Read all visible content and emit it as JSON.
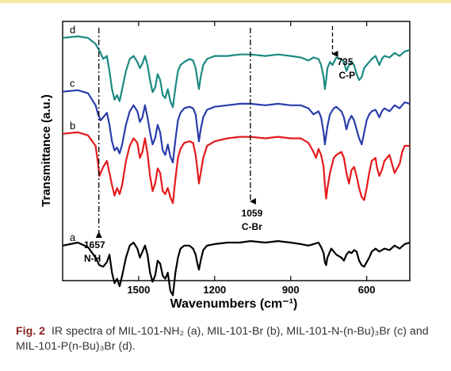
{
  "chart_data": {
    "type": "line",
    "xlabel": "Wavenumbers (cm⁻¹)",
    "ylabel": "Transmittance (a.u.)",
    "xlim": [
      1800,
      430
    ],
    "x_reversed": true,
    "x_ticks": [
      1500,
      1200,
      900,
      600
    ],
    "y_tick_labels": false,
    "grid": false,
    "series": [
      {
        "name": "a",
        "color": "#000000",
        "x": [
          1800,
          1740,
          1700,
          1670,
          1655,
          1640,
          1625,
          1615,
          1605,
          1595,
          1585,
          1575,
          1565,
          1550,
          1535,
          1520,
          1505,
          1495,
          1485,
          1475,
          1465,
          1455,
          1445,
          1435,
          1425,
          1415,
          1405,
          1395,
          1385,
          1375,
          1365,
          1355,
          1345,
          1335,
          1320,
          1300,
          1285,
          1275,
          1268,
          1262,
          1255,
          1245,
          1230,
          1200,
          1150,
          1100,
          1059,
          1000,
          950,
          900,
          860,
          830,
          810,
          790,
          780,
          770,
          765,
          760,
          755,
          740,
          720,
          700,
          690,
          680,
          670,
          660,
          650,
          640,
          630,
          620,
          610,
          600,
          590,
          580,
          565,
          550,
          530,
          510,
          490,
          470,
          450,
          430
        ],
        "y": [
          52,
          50,
          53,
          60,
          65,
          66,
          63,
          58,
          70,
          77,
          74,
          79,
          72,
          60,
          52,
          50,
          54,
          60,
          56,
          52,
          58,
          70,
          76,
          72,
          62,
          64,
          72,
          74,
          70,
          82,
          85,
          70,
          60,
          54,
          52,
          52,
          54,
          58,
          64,
          68,
          62,
          55,
          52,
          51,
          50,
          50,
          49,
          50,
          49,
          50,
          51,
          52,
          51,
          50,
          53,
          57,
          63,
          65,
          60,
          54,
          58,
          60,
          62,
          58,
          56,
          57,
          55,
          56,
          62,
          65,
          66,
          63,
          60,
          56,
          54,
          56,
          54,
          55,
          52,
          54,
          51,
          50
        ]
      },
      {
        "name": "b",
        "color": "#e41a1c",
        "x": [
          1800,
          1740,
          1700,
          1670,
          1660,
          1655,
          1650,
          1640,
          1625,
          1615,
          1605,
          1595,
          1585,
          1575,
          1565,
          1550,
          1535,
          1520,
          1505,
          1495,
          1485,
          1475,
          1465,
          1455,
          1445,
          1435,
          1425,
          1415,
          1405,
          1395,
          1385,
          1375,
          1365,
          1355,
          1345,
          1335,
          1320,
          1300,
          1285,
          1275,
          1268,
          1262,
          1255,
          1245,
          1230,
          1200,
          1150,
          1100,
          1059,
          1000,
          950,
          900,
          860,
          830,
          810,
          800,
          790,
          780,
          770,
          765,
          760,
          755,
          745,
          730,
          720,
          700,
          690,
          680,
          670,
          660,
          650,
          640,
          630,
          620,
          610,
          600,
          590,
          580,
          565,
          560,
          550,
          540,
          530,
          510,
          490,
          470,
          460,
          450,
          430
        ],
        "y": [
          22,
          21,
          23,
          30,
          42,
          50,
          48,
          44,
          40,
          48,
          56,
          63,
          58,
          62,
          56,
          40,
          30,
          25,
          28,
          38,
          34,
          25,
          35,
          50,
          60,
          55,
          45,
          48,
          60,
          62,
          58,
          64,
          68,
          52,
          38,
          32,
          28,
          27,
          28,
          36,
          46,
          55,
          48,
          38,
          30,
          27,
          25,
          24,
          24,
          25,
          24,
          25,
          25,
          28,
          34,
          38,
          32,
          36,
          44,
          56,
          65,
          58,
          48,
          38,
          36,
          34,
          38,
          48,
          55,
          46,
          44,
          50,
          58,
          64,
          66,
          58,
          48,
          40,
          38,
          44,
          50,
          46,
          40,
          36,
          48,
          42,
          34,
          30,
          30
        ]
      },
      {
        "name": "c",
        "color": "#2b3dab",
        "x": [
          1800,
          1740,
          1700,
          1670,
          1660,
          1650,
          1640,
          1625,
          1615,
          1605,
          1595,
          1585,
          1575,
          1565,
          1550,
          1535,
          1520,
          1505,
          1495,
          1485,
          1475,
          1465,
          1455,
          1445,
          1435,
          1425,
          1415,
          1405,
          1395,
          1385,
          1375,
          1365,
          1355,
          1345,
          1335,
          1320,
          1300,
          1285,
          1275,
          1268,
          1262,
          1255,
          1245,
          1230,
          1200,
          1150,
          1100,
          1059,
          1000,
          950,
          900,
          860,
          830,
          810,
          790,
          780,
          770,
          765,
          760,
          755,
          745,
          730,
          720,
          700,
          690,
          680,
          670,
          660,
          650,
          640,
          630,
          620,
          610,
          600,
          590,
          580,
          565,
          550,
          540,
          530,
          510,
          490,
          470,
          450,
          430
        ],
        "y": [
          13,
          12,
          14,
          22,
          28,
          32,
          30,
          27,
          35,
          46,
          52,
          50,
          54,
          48,
          35,
          26,
          22,
          26,
          33,
          30,
          22,
          30,
          40,
          48,
          44,
          35,
          40,
          52,
          55,
          48,
          56,
          60,
          45,
          32,
          27,
          24,
          23,
          24,
          28,
          38,
          46,
          38,
          30,
          25,
          23,
          22,
          21,
          21,
          22,
          21,
          22,
          22,
          24,
          28,
          26,
          30,
          40,
          48,
          42,
          36,
          28,
          24,
          23,
          26,
          30,
          38,
          32,
          29,
          32,
          38,
          44,
          48,
          40,
          32,
          28,
          26,
          25,
          30,
          26,
          24,
          26,
          22,
          24,
          20,
          21
        ]
      },
      {
        "name": "d",
        "color": "#1b8a82",
        "x": [
          1800,
          1740,
          1700,
          1670,
          1650,
          1640,
          1625,
          1615,
          1605,
          1595,
          1585,
          1575,
          1565,
          1550,
          1535,
          1520,
          1505,
          1495,
          1485,
          1475,
          1465,
          1455,
          1445,
          1435,
          1425,
          1415,
          1405,
          1395,
          1385,
          1375,
          1365,
          1355,
          1345,
          1335,
          1320,
          1300,
          1285,
          1275,
          1268,
          1262,
          1255,
          1245,
          1230,
          1200,
          1150,
          1100,
          1059,
          1000,
          950,
          900,
          860,
          830,
          810,
          790,
          780,
          770,
          765,
          760,
          755,
          745,
          735,
          720,
          700,
          690,
          680,
          670,
          660,
          650,
          640,
          630,
          620,
          610,
          600,
          590,
          580,
          565,
          550,
          540,
          530,
          510,
          490,
          470,
          450,
          430
        ],
        "y": [
          2,
          1,
          2,
          6,
          12,
          16,
          14,
          24,
          36,
          43,
          40,
          44,
          36,
          24,
          16,
          14,
          18,
          22,
          19,
          14,
          20,
          30,
          38,
          35,
          26,
          30,
          40,
          42,
          36,
          44,
          48,
          35,
          24,
          20,
          18,
          16,
          17,
          22,
          30,
          36,
          28,
          20,
          16,
          14,
          14,
          13,
          13,
          14,
          13,
          14,
          15,
          17,
          15,
          16,
          20,
          28,
          36,
          30,
          22,
          18,
          20,
          15,
          16,
          18,
          24,
          20,
          18,
          20,
          26,
          30,
          28,
          22,
          20,
          18,
          16,
          14,
          20,
          16,
          14,
          15,
          12,
          14,
          11,
          10
        ]
      }
    ],
    "series_labels": [
      "a",
      "b",
      "c",
      "d"
    ],
    "annotations": [
      {
        "x": 1657,
        "text": [
          "1657",
          "N-H"
        ]
      },
      {
        "x": 1059,
        "text": [
          "1059",
          "C-Br"
        ]
      },
      {
        "x": 735,
        "text": [
          "735",
          "C-P"
        ]
      }
    ]
  },
  "caption": {
    "fig_label": "Fig. 2",
    "text": "IR spectra of MIL-101-NH₂ (a), MIL-101-Br (b), MIL-101-N-(n-Bu)₃Br (c) and MIL-101-P(n-Bu)₃Br (d)."
  }
}
